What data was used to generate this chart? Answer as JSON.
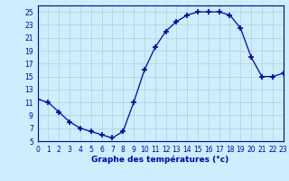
{
  "hours": [
    0,
    1,
    2,
    3,
    4,
    5,
    6,
    7,
    8,
    9,
    10,
    11,
    12,
    13,
    14,
    15,
    16,
    17,
    18,
    19,
    20,
    21,
    22,
    23
  ],
  "temperatures": [
    11.5,
    11.0,
    9.5,
    8.0,
    7.0,
    6.5,
    6.0,
    5.5,
    6.5,
    11.0,
    16.0,
    19.5,
    22.0,
    23.5,
    24.5,
    25.0,
    25.0,
    25.0,
    24.5,
    22.5,
    18.0,
    15.0,
    15.0,
    15.5
  ],
  "line_color": "#0000bb",
  "marker": "+",
  "marker_size": 4,
  "bg_color": "#cceeff",
  "grid_color": "#bbcccc",
  "xlabel": "Graphe des températures (°c)",
  "xlim": [
    0,
    23
  ],
  "ylim": [
    5,
    26
  ],
  "yticks": [
    5,
    7,
    9,
    11,
    13,
    15,
    17,
    19,
    21,
    23,
    25
  ],
  "xtick_labels": [
    "0",
    "1",
    "2",
    "3",
    "4",
    "5",
    "6",
    "7",
    "8",
    "9",
    "10",
    "11",
    "12",
    "13",
    "14",
    "15",
    "16",
    "17",
    "18",
    "19",
    "20",
    "21",
    "22",
    "23"
  ],
  "axis_label_color": "#0000bb",
  "tick_color": "#0000bb",
  "spine_color": "#0000bb",
  "tick_fontsize": 5.5,
  "xlabel_fontsize": 6.5
}
